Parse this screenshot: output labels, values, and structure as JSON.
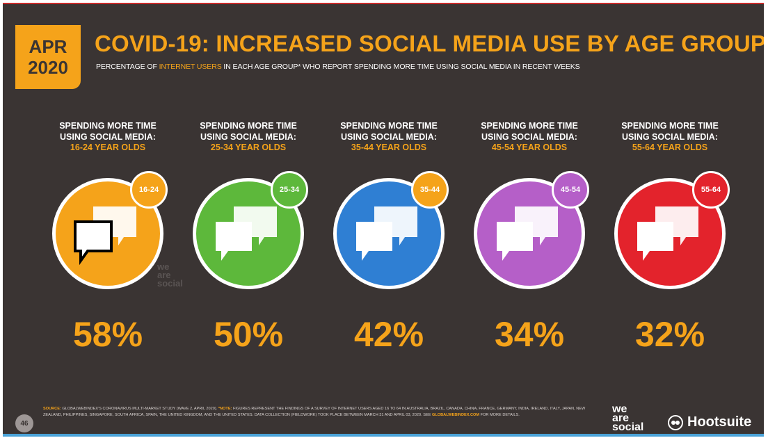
{
  "date_badge": {
    "month": "APR",
    "year": "2020"
  },
  "title": "COVID-19: INCREASED SOCIAL MEDIA USE BY AGE GROUP",
  "subtitle": {
    "pre": "PERCENTAGE OF ",
    "highlight": "INTERNET USERS",
    "post": " IN EACH AGE GROUP* WHO REPORT SPENDING MORE TIME USING SOCIAL MEDIA IN RECENT WEEKS"
  },
  "cards": [
    {
      "line1": "SPENDING MORE TIME",
      "line2": "USING SOCIAL MEDIA:",
      "age_label": "16-24 YEAR OLDS",
      "tag": "16-24",
      "value": "58%",
      "color": "#f5a31a"
    },
    {
      "line1": "SPENDING MORE TIME",
      "line2": "USING SOCIAL MEDIA:",
      "age_label": "25-34 YEAR OLDS",
      "tag": "25-34",
      "value": "50%",
      "color": "#5db83b"
    },
    {
      "line1": "SPENDING MORE TIME",
      "line2": "USING SOCIAL MEDIA:",
      "age_label": "35-44 YEAR OLDS",
      "tag": "35-44",
      "value": "42%",
      "color": "#2f7fd3"
    },
    {
      "line1": "SPENDING MORE TIME",
      "line2": "USING SOCIAL MEDIA:",
      "age_label": "45-54 YEAR OLDS",
      "tag": "45-54",
      "value": "34%",
      "color": "#b55fc8"
    },
    {
      "line1": "SPENDING MORE TIME",
      "line2": "USING SOCIAL MEDIA:",
      "age_label": "55-64 YEAR OLDS",
      "tag": "55-64",
      "value": "32%",
      "color": "#e3232c"
    }
  ],
  "watermark": {
    "line1": "we",
    "line2": "are",
    "line3": "social"
  },
  "footer": {
    "page_number": "46",
    "source_label": "SOURCE:",
    "source_text": "GLOBALWEBINDEX'S CORONAVIRUS MULTI-MARKET STUDY (WAVE 2, APRIL 2020).",
    "note_label": "*NOTE:",
    "note_text": "FIGURES REPRESENT THE FINDINGS OF A SURVEY OF INTERNET USERS AGED 16 TO 64 IN AUSTRALIA, BRAZIL, CANADA, CHINA, FRANCE, GERMANY, INDIA, IRELAND, ITALY, JAPAN, NEW ZEALAND, PHILIPPINES, SINGAPORE, SOUTH AFRICA, SPAIN, THE UNITED KINGDOM, AND THE UNITED STATES. DATA COLLECTION (FIELDWORK) TOOK PLACE BETWEEN MARCH 31 AND APRIL 03, 2020. SEE",
    "note_link": "GLOBALWEBINDEX.COM",
    "note_end": "FOR MORE DETAILS.",
    "logo_was": {
      "line1": "we",
      "line2": "are",
      "line3": "social"
    },
    "logo_hootsuite": "Hootsuite"
  }
}
